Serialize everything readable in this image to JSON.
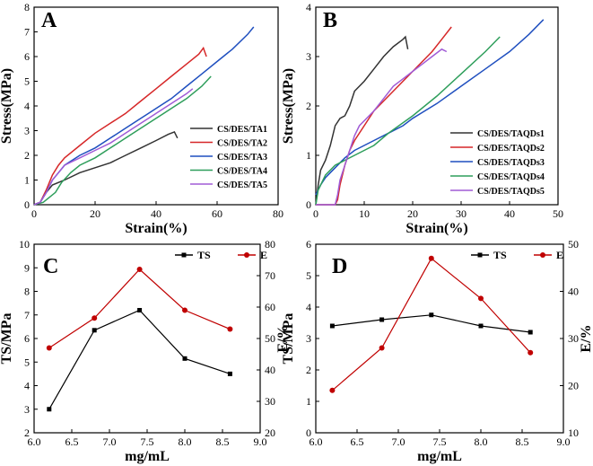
{
  "chart_data": [
    {
      "panel": "A",
      "type": "line",
      "xlabel": "Strain(%)",
      "ylabel": "Stress(MPa)",
      "xlim": [
        0,
        80
      ],
      "ylim": [
        0,
        8
      ],
      "xticks": [
        0,
        20,
        40,
        60,
        80
      ],
      "yticks": [
        0,
        1,
        2,
        3,
        4,
        5,
        6,
        7,
        8
      ],
      "legend_position": "bottom-right",
      "series": [
        {
          "name": "CS/DES/TA1",
          "color": "#333333",
          "points": [
            [
              0,
              0
            ],
            [
              2,
              0.1
            ],
            [
              4,
              0.5
            ],
            [
              6,
              0.8
            ],
            [
              10,
              1.0
            ],
            [
              15,
              1.3
            ],
            [
              20,
              1.5
            ],
            [
              25,
              1.7
            ],
            [
              30,
              2.0
            ],
            [
              35,
              2.3
            ],
            [
              40,
              2.6
            ],
            [
              44,
              2.85
            ],
            [
              46,
              2.95
            ],
            [
              47,
              2.7
            ]
          ]
        },
        {
          "name": "CS/DES/TA2",
          "color": "#d62728",
          "points": [
            [
              0,
              0
            ],
            [
              2,
              0.1
            ],
            [
              4,
              0.6
            ],
            [
              6,
              1.2
            ],
            [
              8,
              1.6
            ],
            [
              10,
              1.9
            ],
            [
              15,
              2.4
            ],
            [
              20,
              2.9
            ],
            [
              25,
              3.3
            ],
            [
              30,
              3.7
            ],
            [
              35,
              4.2
            ],
            [
              40,
              4.7
            ],
            [
              45,
              5.2
            ],
            [
              50,
              5.7
            ],
            [
              54,
              6.1
            ],
            [
              55.5,
              6.35
            ],
            [
              56.5,
              6.0
            ]
          ]
        },
        {
          "name": "CS/DES/TA3",
          "color": "#1f4fbf",
          "points": [
            [
              0,
              0
            ],
            [
              2,
              0.1
            ],
            [
              4,
              0.5
            ],
            [
              6,
              1.0
            ],
            [
              8,
              1.3
            ],
            [
              10,
              1.6
            ],
            [
              15,
              2.0
            ],
            [
              20,
              2.3
            ],
            [
              25,
              2.7
            ],
            [
              30,
              3.1
            ],
            [
              35,
              3.5
            ],
            [
              40,
              3.9
            ],
            [
              45,
              4.3
            ],
            [
              50,
              4.8
            ],
            [
              55,
              5.3
            ],
            [
              60,
              5.8
            ],
            [
              65,
              6.3
            ],
            [
              70,
              6.9
            ],
            [
              72,
              7.2
            ]
          ]
        },
        {
          "name": "CS/DES/TA4",
          "color": "#2e9e5b",
          "points": [
            [
              0,
              0
            ],
            [
              3,
              0.1
            ],
            [
              5,
              0.3
            ],
            [
              7,
              0.5
            ],
            [
              9,
              0.9
            ],
            [
              12,
              1.3
            ],
            [
              15,
              1.6
            ],
            [
              20,
              1.9
            ],
            [
              25,
              2.3
            ],
            [
              30,
              2.7
            ],
            [
              35,
              3.1
            ],
            [
              40,
              3.5
            ],
            [
              45,
              3.9
            ],
            [
              50,
              4.3
            ],
            [
              55,
              4.8
            ],
            [
              58,
              5.2
            ]
          ]
        },
        {
          "name": "CS/DES/TA5",
          "color": "#a05bd6",
          "points": [
            [
              0,
              0
            ],
            [
              2,
              0.1
            ],
            [
              4,
              0.5
            ],
            [
              6,
              1.0
            ],
            [
              8,
              1.3
            ],
            [
              10,
              1.6
            ],
            [
              15,
              1.9
            ],
            [
              20,
              2.2
            ],
            [
              25,
              2.5
            ],
            [
              30,
              2.9
            ],
            [
              35,
              3.3
            ],
            [
              40,
              3.7
            ],
            [
              45,
              4.1
            ],
            [
              50,
              4.5
            ],
            [
              52,
              4.7
            ]
          ]
        }
      ]
    },
    {
      "panel": "B",
      "type": "line",
      "xlabel": "Strain(%)",
      "ylabel": "Stress(MPa)",
      "xlim": [
        0,
        50
      ],
      "ylim": [
        0,
        4
      ],
      "xticks": [
        0,
        10,
        20,
        30,
        40,
        50
      ],
      "yticks": [
        0,
        1,
        2,
        3,
        4
      ],
      "legend_position": "bottom-right",
      "series": [
        {
          "name": "CS/DES/TAQDs1",
          "color": "#333333",
          "points": [
            [
              0,
              0
            ],
            [
              0.5,
              0.4
            ],
            [
              1,
              0.7
            ],
            [
              2,
              0.9
            ],
            [
              3,
              1.2
            ],
            [
              4,
              1.6
            ],
            [
              5,
              1.75
            ],
            [
              6,
              1.8
            ],
            [
              7,
              2.0
            ],
            [
              8,
              2.3
            ],
            [
              10,
              2.5
            ],
            [
              12,
              2.75
            ],
            [
              14,
              3.0
            ],
            [
              16,
              3.2
            ],
            [
              18,
              3.35
            ],
            [
              18.5,
              3.4
            ],
            [
              19,
              3.15
            ]
          ]
        },
        {
          "name": "CS/DES/TAQDs2",
          "color": "#d62728",
          "points": [
            [
              0,
              0
            ],
            [
              4,
              0
            ],
            [
              4.5,
              0.1
            ],
            [
              5,
              0.4
            ],
            [
              6,
              0.8
            ],
            [
              7,
              1.1
            ],
            [
              8,
              1.3
            ],
            [
              10,
              1.6
            ],
            [
              12,
              1.9
            ],
            [
              14,
              2.1
            ],
            [
              16,
              2.3
            ],
            [
              18,
              2.5
            ],
            [
              20,
              2.7
            ],
            [
              22,
              2.9
            ],
            [
              24,
              3.1
            ],
            [
              26,
              3.35
            ],
            [
              28,
              3.6
            ]
          ]
        },
        {
          "name": "CS/DES/TAQDs3",
          "color": "#1f4fbf",
          "points": [
            [
              0,
              0.2
            ],
            [
              1,
              0.4
            ],
            [
              2,
              0.55
            ],
            [
              3,
              0.65
            ],
            [
              4,
              0.75
            ],
            [
              6,
              0.95
            ],
            [
              8,
              1.1
            ],
            [
              10,
              1.2
            ],
            [
              12,
              1.3
            ],
            [
              15,
              1.45
            ],
            [
              18,
              1.6
            ],
            [
              20,
              1.75
            ],
            [
              25,
              2.05
            ],
            [
              30,
              2.4
            ],
            [
              35,
              2.75
            ],
            [
              40,
              3.1
            ],
            [
              44,
              3.45
            ],
            [
              46,
              3.65
            ],
            [
              47,
              3.75
            ]
          ]
        },
        {
          "name": "CS/DES/TAQDs4",
          "color": "#2e9e5b",
          "points": [
            [
              0,
              0
            ],
            [
              0.5,
              0.3
            ],
            [
              2,
              0.6
            ],
            [
              4,
              0.8
            ],
            [
              6,
              0.9
            ],
            [
              8,
              1.0
            ],
            [
              10,
              1.1
            ],
            [
              12,
              1.2
            ],
            [
              15,
              1.45
            ],
            [
              20,
              1.8
            ],
            [
              25,
              2.2
            ],
            [
              30,
              2.65
            ],
            [
              35,
              3.1
            ],
            [
              38,
              3.4
            ]
          ]
        },
        {
          "name": "CS/DES/TAQDs5",
          "color": "#a05bd6",
          "points": [
            [
              0,
              0
            ],
            [
              4,
              0
            ],
            [
              4.5,
              0.2
            ],
            [
              5,
              0.5
            ],
            [
              6,
              0.8
            ],
            [
              7,
              1.1
            ],
            [
              8,
              1.4
            ],
            [
              9,
              1.6
            ],
            [
              10,
              1.7
            ],
            [
              12,
              1.9
            ],
            [
              14,
              2.15
            ],
            [
              16,
              2.4
            ],
            [
              18,
              2.55
            ],
            [
              20,
              2.7
            ],
            [
              22,
              2.85
            ],
            [
              24,
              3.0
            ],
            [
              26,
              3.15
            ],
            [
              27,
              3.1
            ]
          ]
        }
      ]
    },
    {
      "panel": "C",
      "type": "line",
      "xlabel": "mg/mL",
      "ylabel_left": "TS/MPa",
      "ylabel_right": "E/%",
      "xlim": [
        6.0,
        9.0
      ],
      "ylim_left": [
        2,
        10
      ],
      "ylim_right": [
        20,
        80
      ],
      "xticks": [
        "6.0",
        "6.5",
        "7.0",
        "7.5",
        "8.0",
        "8.5",
        "9.0"
      ],
      "yticks_left": [
        2,
        3,
        4,
        5,
        6,
        7,
        8,
        9,
        10
      ],
      "yticks_right": [
        20,
        30,
        40,
        50,
        60,
        70,
        80
      ],
      "legend_position": "top-right",
      "x": [
        6.2,
        6.8,
        7.4,
        8.0,
        8.6
      ],
      "series": [
        {
          "name": "TS",
          "axis": "left",
          "color": "#000000",
          "values": [
            3.0,
            6.35,
            7.2,
            5.15,
            4.5
          ]
        },
        {
          "name": "E",
          "axis": "right",
          "color": "#c00000",
          "values": [
            47,
            56.5,
            72,
            59,
            53
          ]
        }
      ]
    },
    {
      "panel": "D",
      "type": "line",
      "xlabel": "mg/mL",
      "ylabel_left": "TS/MPa",
      "ylabel_right": "E/%",
      "xlim": [
        6.0,
        9.0
      ],
      "ylim_left": [
        0,
        6
      ],
      "ylim_right": [
        10,
        50
      ],
      "xticks": [
        "6.0",
        "6.5",
        "7.0",
        "7.5",
        "8.0",
        "8.5",
        "9.0"
      ],
      "yticks_left": [
        0,
        1,
        2,
        3,
        4,
        5,
        6
      ],
      "yticks_right": [
        10,
        20,
        30,
        40,
        50
      ],
      "legend_position": "top-right",
      "x": [
        6.2,
        6.8,
        7.4,
        8.0,
        8.6
      ],
      "series": [
        {
          "name": "TS",
          "axis": "left",
          "color": "#000000",
          "values": [
            3.4,
            3.6,
            3.75,
            3.4,
            3.2
          ]
        },
        {
          "name": "E",
          "axis": "right",
          "color": "#c00000",
          "values": [
            19,
            28,
            47,
            38.5,
            27
          ]
        }
      ]
    }
  ]
}
